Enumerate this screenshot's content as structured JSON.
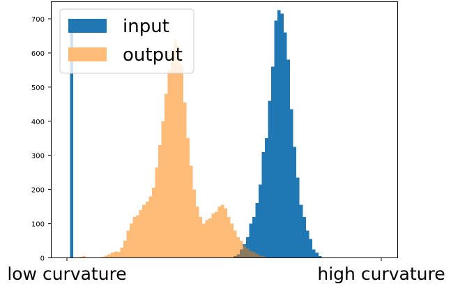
{
  "chart_data": {
    "type": "bar",
    "title": "",
    "xlabel": "",
    "ylabel": "",
    "ylim": [
      0,
      750
    ],
    "y_ticks": [
      0,
      100,
      200,
      300,
      400,
      500,
      600,
      700
    ],
    "x_tick_labels": [
      "low curvature",
      "high curvature"
    ],
    "bin_count": 100,
    "legend_position": "upper-left",
    "colors": {
      "input": "#1f77b4",
      "output": "#ffbb78",
      "overlap": "#8c7a5e"
    },
    "series": [
      {
        "name": "input",
        "values": [
          0,
          690,
          0,
          0,
          0,
          0,
          0,
          0,
          0,
          0,
          0,
          0,
          0,
          0,
          0,
          0,
          0,
          0,
          0,
          0,
          0,
          0,
          0,
          0,
          0,
          0,
          0,
          0,
          0,
          0,
          0,
          0,
          0,
          0,
          0,
          0,
          0,
          0,
          0,
          0,
          0,
          0,
          0,
          0,
          0,
          0,
          0,
          0,
          0,
          0,
          0,
          0,
          0,
          5,
          10,
          25,
          40,
          60,
          100,
          120,
          160,
          215,
          310,
          350,
          460,
          560,
          695,
          725,
          715,
          660,
          580,
          435,
          325,
          235,
          155,
          120,
          80,
          55,
          25,
          15,
          5,
          0,
          0,
          0,
          0,
          0,
          0,
          0,
          0,
          0,
          0,
          0,
          0,
          0,
          0,
          0,
          0,
          0,
          0,
          0
        ]
      },
      {
        "name": "output",
        "values": [
          0,
          0,
          0,
          0,
          3,
          5,
          0,
          0,
          0,
          0,
          0,
          3,
          6,
          10,
          15,
          18,
          17,
          30,
          50,
          80,
          100,
          120,
          125,
          140,
          155,
          165,
          180,
          205,
          265,
          330,
          400,
          480,
          550,
          610,
          640,
          620,
          565,
          455,
          350,
          270,
          200,
          150,
          120,
          100,
          110,
          115,
          130,
          135,
          150,
          155,
          145,
          120,
          100,
          80,
          60,
          50,
          35,
          28,
          20,
          17,
          12,
          6,
          5,
          2,
          0,
          0,
          0,
          0,
          0,
          0,
          0,
          0,
          0,
          0,
          0,
          0,
          0,
          0,
          0,
          0,
          0,
          0,
          0,
          0,
          0,
          0,
          0,
          0,
          0,
          0,
          0,
          0,
          0,
          0,
          0,
          0,
          0,
          0,
          0,
          0
        ]
      }
    ]
  }
}
